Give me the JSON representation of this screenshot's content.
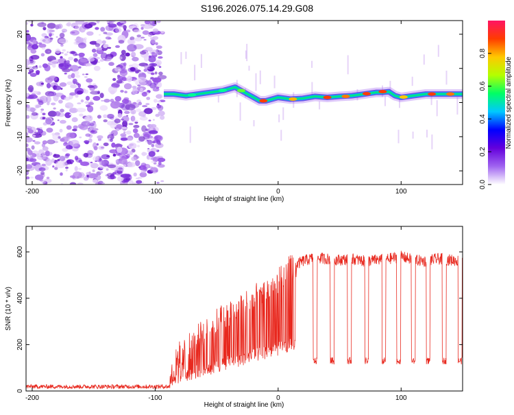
{
  "title": "S196.2026.075.14.29.G08",
  "chart_data": [
    {
      "type": "heatmap",
      "xlabel": "Height of straight line (km)",
      "ylabel": "Frequency (Hz)",
      "xlim": [
        -205,
        150
      ],
      "ylim": [
        -24,
        24
      ],
      "xticks": [
        -200,
        -100,
        0,
        100
      ],
      "yticks": [
        -20,
        -10,
        0,
        10,
        20
      ],
      "noise_region": [
        -205,
        -94
      ],
      "signal_ridge": {
        "x": [
          -93,
          -85,
          -75,
          -65,
          -55,
          -45,
          -40,
          -35,
          -30,
          -25,
          -20,
          -15,
          -10,
          -5,
          0,
          10,
          20,
          30,
          40,
          50,
          60,
          70,
          80,
          85,
          90,
          95,
          100,
          110,
          120,
          130,
          140,
          150
        ],
        "frequency_hz": [
          2.5,
          2.5,
          2.0,
          2.5,
          3.0,
          3.5,
          4.0,
          4.5,
          3.5,
          2.5,
          1.5,
          0.5,
          0.5,
          1.0,
          1.5,
          1.0,
          1.2,
          1.8,
          1.5,
          1.8,
          2.0,
          2.5,
          3.0,
          3.0,
          3.2,
          2.0,
          1.5,
          2.0,
          2.5,
          2.5,
          2.5,
          2.5
        ]
      }
    },
    {
      "type": "line",
      "xlabel": "Height of straight line (km)",
      "ylabel": "SNR (10 * v/v)",
      "xlim": [
        -205,
        150
      ],
      "ylim": [
        0,
        710
      ],
      "xticks": [
        -200,
        -100,
        0,
        100
      ],
      "yticks": [
        0,
        200,
        400,
        600
      ],
      "series": [
        {
          "name": "SNR",
          "color": "#e8281e",
          "x": [
            -205,
            -100,
            -90,
            -85,
            -80,
            -70,
            -60,
            -50,
            -40,
            -30,
            -20,
            -10,
            0,
            5,
            10,
            20,
            30,
            40,
            50,
            60,
            70,
            80,
            90,
            100,
            110,
            120,
            130,
            140,
            150
          ],
          "y": [
            18,
            20,
            25,
            100,
            160,
            200,
            260,
            300,
            340,
            370,
            400,
            430,
            470,
            500,
            530,
            560,
            575,
            570,
            565,
            570,
            560,
            565,
            570,
            580,
            565,
            560,
            570,
            565,
            560
          ],
          "dropout_centers": [
            12,
            30,
            44,
            58,
            72,
            86,
            98,
            110,
            122,
            135,
            148
          ],
          "dropout_level": 130
        }
      ]
    }
  ],
  "colorbar": {
    "label": "Normalized spectral amplitude",
    "range": [
      0,
      1
    ],
    "ticks": [
      0.0,
      0.2,
      0.4,
      0.6,
      0.8
    ],
    "tick_labels": [
      "0.0",
      "0.2",
      "0.4",
      "0.6",
      "0.8"
    ],
    "colors": [
      "#ffffff",
      "#a064f0",
      "#6400dc",
      "#0000ff",
      "#00c8ff",
      "#00ff64",
      "#b4ff00",
      "#ffc800",
      "#ff3c00",
      "#ff1464"
    ]
  }
}
